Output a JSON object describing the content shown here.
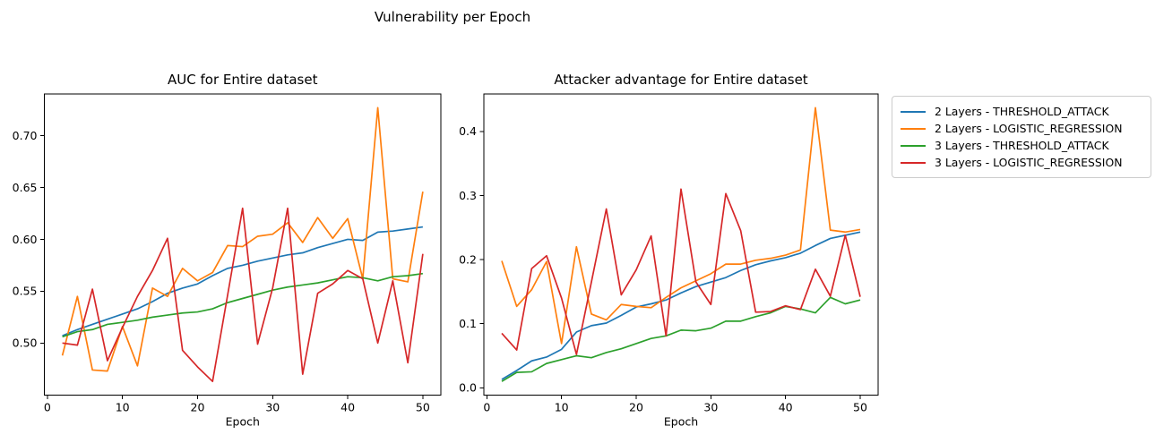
{
  "figure": {
    "title": "Vulnerability per Epoch"
  },
  "legend": {
    "entries": [
      {
        "label": "2 Layers - THRESHOLD_ATTACK",
        "color": "#1f77b4"
      },
      {
        "label": "2 Layers - LOGISTIC_REGRESSION",
        "color": "#ff7f0e"
      },
      {
        "label": "3 Layers - THRESHOLD_ATTACK",
        "color": "#2ca02c"
      },
      {
        "label": "3 Layers - LOGISTIC_REGRESSION",
        "color": "#d62728"
      }
    ]
  },
  "chart_data": [
    {
      "type": "line",
      "title": "AUC for Entire dataset",
      "xlabel": "Epoch",
      "grid": false,
      "x": [
        2,
        4,
        6,
        8,
        10,
        12,
        14,
        16,
        18,
        20,
        22,
        24,
        26,
        28,
        30,
        32,
        34,
        36,
        38,
        40,
        42,
        44,
        46,
        48,
        50
      ],
      "xlim": [
        -0.4,
        52.4
      ],
      "ylim": [
        0.4498,
        0.7402
      ],
      "xticks": [
        0,
        10,
        20,
        30,
        40,
        50
      ],
      "xtick_labels": [
        "0",
        "10",
        "20",
        "30",
        "40",
        "50"
      ],
      "yticks": [
        0.5,
        0.55,
        0.6,
        0.65,
        0.7
      ],
      "ytick_labels": [
        "0.50",
        "0.55",
        "0.60",
        "0.65",
        "0.70"
      ],
      "series": [
        {
          "name": "2 Layers - THRESHOLD_ATTACK",
          "color": "#1f77b4",
          "values": [
            0.507,
            0.513,
            0.518,
            0.523,
            0.528,
            0.533,
            0.54,
            0.548,
            0.553,
            0.557,
            0.565,
            0.572,
            0.575,
            0.579,
            0.582,
            0.585,
            0.587,
            0.592,
            0.596,
            0.6,
            0.599,
            0.607,
            0.608,
            0.61,
            0.612
          ]
        },
        {
          "name": "2 Layers - LOGISTIC_REGRESSION",
          "color": "#ff7f0e",
          "values": [
            0.488,
            0.545,
            0.474,
            0.473,
            0.516,
            0.478,
            0.553,
            0.545,
            0.572,
            0.56,
            0.568,
            0.594,
            0.593,
            0.603,
            0.605,
            0.616,
            0.597,
            0.621,
            0.601,
            0.62,
            0.562,
            0.727,
            0.562,
            0.559,
            0.646
          ]
        },
        {
          "name": "3 Layers - THRESHOLD_ATTACK",
          "color": "#2ca02c",
          "values": [
            0.506,
            0.511,
            0.513,
            0.518,
            0.52,
            0.522,
            0.525,
            0.527,
            0.529,
            0.53,
            0.533,
            0.539,
            0.543,
            0.547,
            0.551,
            0.554,
            0.556,
            0.558,
            0.561,
            0.564,
            0.563,
            0.56,
            0.564,
            0.565,
            0.567
          ]
        },
        {
          "name": "3 Layers - LOGISTIC_REGRESSION",
          "color": "#d62728",
          "values": [
            0.5,
            0.498,
            0.552,
            0.483,
            0.515,
            0.545,
            0.57,
            0.601,
            0.493,
            0.477,
            0.463,
            0.546,
            0.63,
            0.499,
            0.553,
            0.63,
            0.47,
            0.548,
            0.557,
            0.57,
            0.562,
            0.5,
            0.56,
            0.481,
            0.586
          ]
        }
      ]
    },
    {
      "type": "line",
      "title": "Attacker advantage for Entire dataset",
      "xlabel": "Epoch",
      "grid": false,
      "x": [
        2,
        4,
        6,
        8,
        10,
        12,
        14,
        16,
        18,
        20,
        22,
        24,
        26,
        28,
        30,
        32,
        34,
        36,
        38,
        40,
        42,
        44,
        46,
        48,
        50
      ],
      "xlim": [
        -0.4,
        52.4
      ],
      "ylim": [
        -0.0114,
        0.4584
      ],
      "xticks": [
        0,
        10,
        20,
        30,
        40,
        50
      ],
      "xtick_labels": [
        "0",
        "10",
        "20",
        "30",
        "40",
        "50"
      ],
      "yticks": [
        0.0,
        0.1,
        0.2,
        0.3,
        0.4
      ],
      "ytick_labels": [
        "0.0",
        "0.1",
        "0.2",
        "0.3",
        "0.4"
      ],
      "series": [
        {
          "name": "2 Layers - THRESHOLD_ATTACK",
          "color": "#1f77b4",
          "values": [
            0.013,
            0.027,
            0.042,
            0.048,
            0.06,
            0.087,
            0.097,
            0.101,
            0.113,
            0.126,
            0.131,
            0.137,
            0.148,
            0.158,
            0.165,
            0.172,
            0.183,
            0.192,
            0.198,
            0.203,
            0.21,
            0.222,
            0.233,
            0.238,
            0.243
          ]
        },
        {
          "name": "2 Layers - LOGISTIC_REGRESSION",
          "color": "#ff7f0e",
          "values": [
            0.198,
            0.127,
            0.153,
            0.197,
            0.069,
            0.22,
            0.115,
            0.106,
            0.13,
            0.127,
            0.125,
            0.141,
            0.156,
            0.167,
            0.178,
            0.193,
            0.193,
            0.199,
            0.202,
            0.207,
            0.215,
            0.437,
            0.246,
            0.243,
            0.247
          ]
        },
        {
          "name": "3 Layers - THRESHOLD_ATTACK",
          "color": "#2ca02c",
          "values": [
            0.01,
            0.024,
            0.025,
            0.038,
            0.044,
            0.05,
            0.047,
            0.055,
            0.061,
            0.069,
            0.077,
            0.081,
            0.09,
            0.089,
            0.093,
            0.104,
            0.104,
            0.111,
            0.117,
            0.127,
            0.123,
            0.117,
            0.141,
            0.131,
            0.137
          ]
        },
        {
          "name": "3 Layers - LOGISTIC_REGRESSION",
          "color": "#d62728",
          "values": [
            0.085,
            0.059,
            0.186,
            0.206,
            0.14,
            0.052,
            0.165,
            0.279,
            0.145,
            0.184,
            0.237,
            0.081,
            0.31,
            0.165,
            0.13,
            0.303,
            0.245,
            0.118,
            0.119,
            0.128,
            0.122,
            0.185,
            0.143,
            0.238,
            0.142
          ]
        }
      ]
    }
  ]
}
